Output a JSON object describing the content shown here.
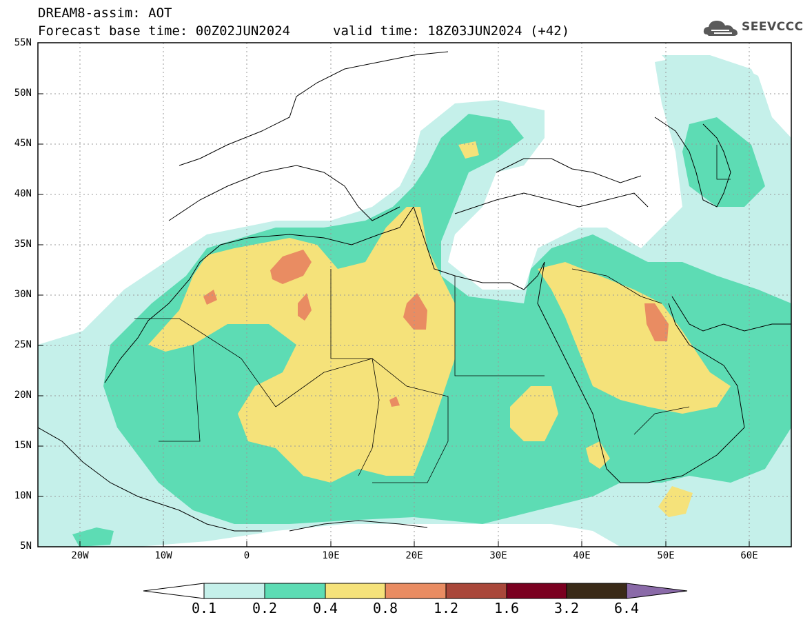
{
  "header": {
    "title_line1": "DREAM8-assim: AOT",
    "title_line2": "Forecast base time: 00Z02JUN2024",
    "valid_time": "valid time: 18Z03JUN2024 (+42)",
    "logo_text": "SEEVCCC",
    "logo_icon": "cloud-icon"
  },
  "map": {
    "lat_labels": [
      "55N",
      "50N",
      "45N",
      "40N",
      "35N",
      "30N",
      "25N",
      "20N",
      "15N",
      "10N",
      "5N"
    ],
    "lon_labels": [
      "20W",
      "10W",
      "0",
      "10E",
      "20E",
      "30E",
      "40E",
      "50E",
      "60E"
    ],
    "colors": {
      "ocean": "#ffffff",
      "border": "#000000",
      "grid": "#999999"
    }
  },
  "colorbar": {
    "labels": [
      "0.1",
      "0.2",
      "0.4",
      "0.8",
      "1.2",
      "1.6",
      "3.2",
      "6.4"
    ],
    "colors": [
      "#ffffff",
      "#c5f0ea",
      "#5ddcb4",
      "#f5e27a",
      "#e98c62",
      "#a9473a",
      "#7a0020",
      "#3a2a18",
      "#8a6aa8"
    ]
  }
}
